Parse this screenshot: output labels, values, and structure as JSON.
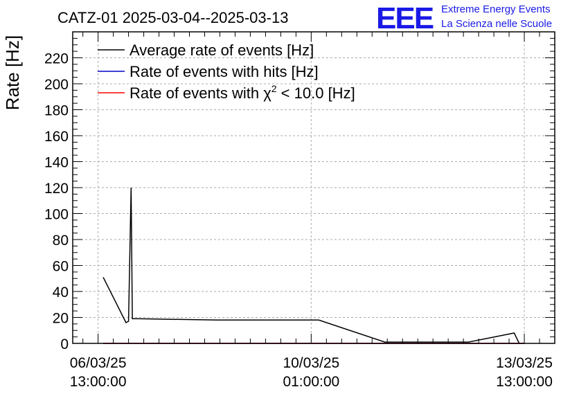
{
  "chart_data": {
    "type": "line",
    "title": "CATZ-01 2025-03-04--2025-03-13",
    "ylabel": "Rate [Hz]",
    "xlabel": "",
    "ylim": [
      0,
      240
    ],
    "xlim": [
      "2025-03-06 03:00:00",
      "2025-03-14 01:00:00"
    ],
    "yticks": [
      0,
      20,
      40,
      60,
      80,
      100,
      120,
      140,
      160,
      180,
      200,
      220
    ],
    "xticks": [
      {
        "x": "2025-03-06 13:00:00",
        "date": "06/03/25",
        "time": "13:00:00"
      },
      {
        "x": "2025-03-10 01:00:00",
        "date": "10/03/25",
        "time": "01:00:00"
      },
      {
        "x": "2025-03-13 13:00:00",
        "date": "13/03/25",
        "time": "13:00:00"
      }
    ],
    "grid": true,
    "legend_position": "top-left",
    "series": [
      {
        "name": "Average rate of events [Hz]",
        "color": "#000000",
        "points": [
          [
            "2025-03-06 15:00:00",
            51
          ],
          [
            "2025-03-07 00:00:00",
            16
          ],
          [
            "2025-03-07 01:00:00",
            17
          ],
          [
            "2025-03-07 02:00:00",
            120
          ],
          [
            "2025-03-07 02:30:00",
            19
          ],
          [
            "2025-03-07 05:00:00",
            19
          ],
          [
            "2025-03-08 12:00:00",
            18
          ],
          [
            "2025-03-10 04:00:00",
            18
          ],
          [
            "2025-03-11 06:00:00",
            1
          ],
          [
            "2025-03-11 10:00:00",
            1
          ],
          [
            "2025-03-12 15:00:00",
            1
          ],
          [
            "2025-03-13 09:00:00",
            8
          ],
          [
            "2025-03-13 11:00:00",
            0
          ],
          [
            "2025-03-13 13:00:00",
            0
          ]
        ]
      },
      {
        "name": "Rate of events with hits [Hz]",
        "color": "#0000cc",
        "points": [
          [
            "2025-03-06 15:00:00",
            0
          ],
          [
            "2025-03-13 13:00:00",
            0
          ]
        ]
      },
      {
        "name": "Rate of events with χ² < 10.0 [Hz]",
        "color": "#ff0000",
        "points": [
          [
            "2025-03-06 15:00:00",
            0
          ],
          [
            "2025-03-13 13:00:00",
            0
          ]
        ]
      }
    ]
  },
  "legend": {
    "entries": [
      {
        "text": "Average rate of events [Hz]"
      },
      {
        "text": "Rate of events with hits [Hz]"
      },
      {
        "text_before": "Rate of events with χ",
        "sup": "2",
        "text_after": " < 10.0 [Hz]"
      }
    ]
  },
  "brand": {
    "logo_text": "EEE",
    "line1": "Extreme Energy Events",
    "line2": "La Scienza nelle Scuole"
  },
  "colors": {
    "brand": "#1a1ae6",
    "grid": "#aaaaaa"
  }
}
